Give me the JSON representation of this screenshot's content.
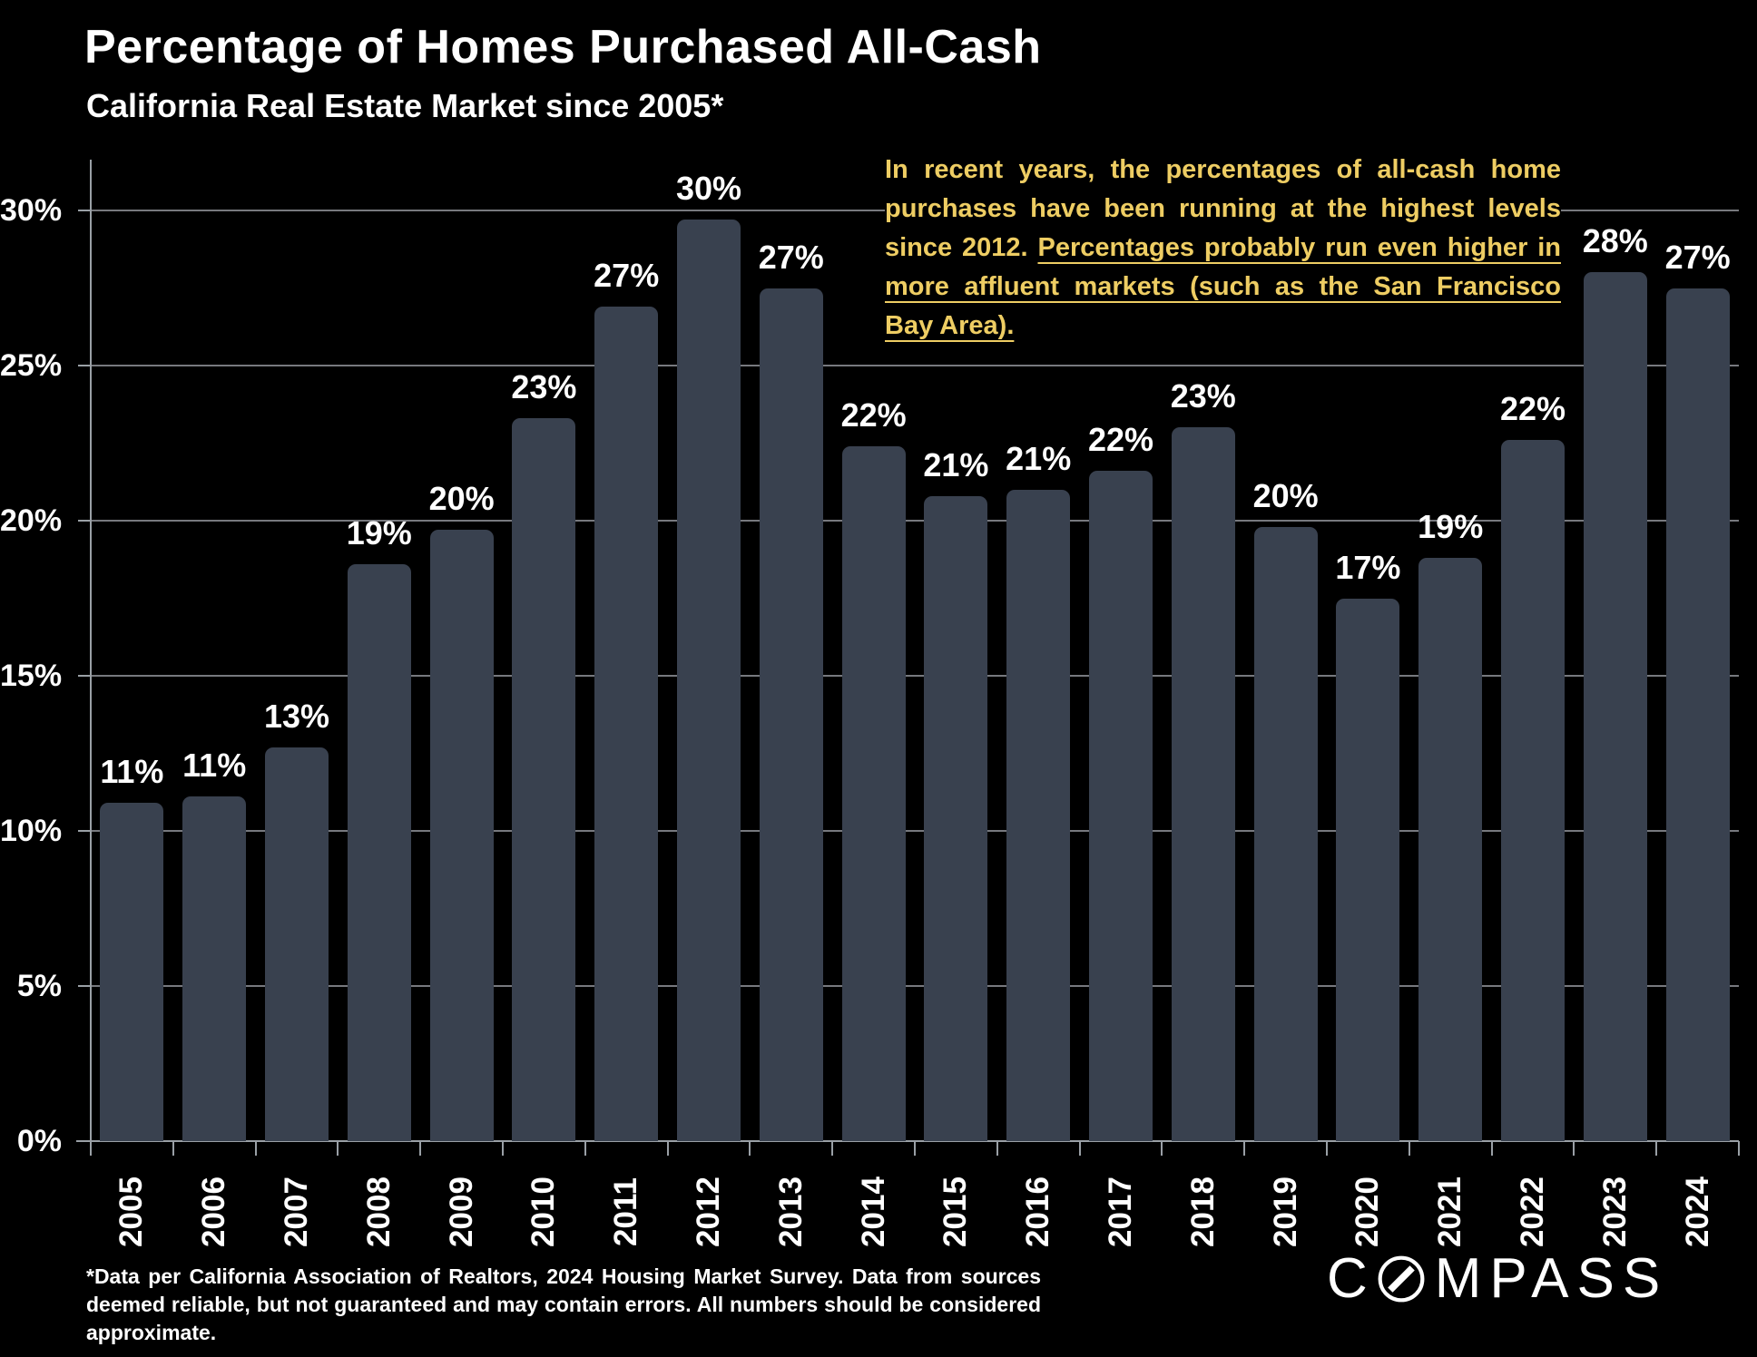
{
  "header": {
    "title": "Percentage of Homes Purchased All-Cash",
    "subtitle": "California Real Estate Market since 2005*"
  },
  "annotation": {
    "text_plain": "In recent years, the percentages of all-cash home purchases have been running at the highest levels since 2012. ",
    "text_underlined": "Percentages probably run even higher in more affluent markets (such as the San Francisco Bay Area).",
    "color": "#eecd63"
  },
  "chart_data": {
    "type": "bar",
    "title": "Percentage of Homes Purchased All-Cash",
    "subtitle": "California Real Estate Market since 2005*",
    "categories": [
      "2005",
      "2006",
      "2007",
      "2008",
      "2009",
      "2010",
      "2011",
      "2012",
      "2013",
      "2014",
      "2015",
      "2016",
      "2017",
      "2018",
      "2019",
      "2020",
      "2021",
      "2022",
      "2023",
      "2024"
    ],
    "values": [
      11,
      11,
      13,
      19,
      20,
      23,
      27,
      30,
      27,
      22,
      21,
      21,
      22,
      23,
      20,
      17,
      19,
      22,
      28,
      27
    ],
    "bar_labels": [
      "11%",
      "11%",
      "13%",
      "19%",
      "20%",
      "23%",
      "27%",
      "30%",
      "27%",
      "22%",
      "21%",
      "21%",
      "22%",
      "23%",
      "20%",
      "17%",
      "19%",
      "22%",
      "28%",
      "27%"
    ],
    "bar_heights_pct_est": [
      10.9,
      11.1,
      12.7,
      18.6,
      19.7,
      23.3,
      26.9,
      29.7,
      27.5,
      22.4,
      20.8,
      21.0,
      21.6,
      23.0,
      19.8,
      17.5,
      18.8,
      22.6,
      28.0,
      27.5
    ],
    "y_ticks": [
      {
        "value": 0,
        "label": "0%"
      },
      {
        "value": 5,
        "label": "5%"
      },
      {
        "value": 10,
        "label": "10%"
      },
      {
        "value": 15,
        "label": "15%"
      },
      {
        "value": 20,
        "label": "20%"
      },
      {
        "value": 25,
        "label": "25%"
      },
      {
        "value": 30,
        "label": "30%"
      }
    ],
    "ylim": [
      0,
      31
    ],
    "xlabel": "",
    "ylabel": "",
    "grid": true,
    "legend": "none",
    "bar_color": "#39414f",
    "grid_color": "#77797e",
    "axis_color": "#9aa0a6",
    "background": "#000000",
    "label_color": "#ffffff"
  },
  "footnote": {
    "text": "*Data per California Association of Realtors, 2024 Housing Market Survey. Data from sources deemed reliable, but not guaranteed and may contain errors. All numbers should be considered approximate."
  },
  "logo": {
    "text": "COMPASS",
    "prefix": "C",
    "suffix": "MPASS"
  }
}
